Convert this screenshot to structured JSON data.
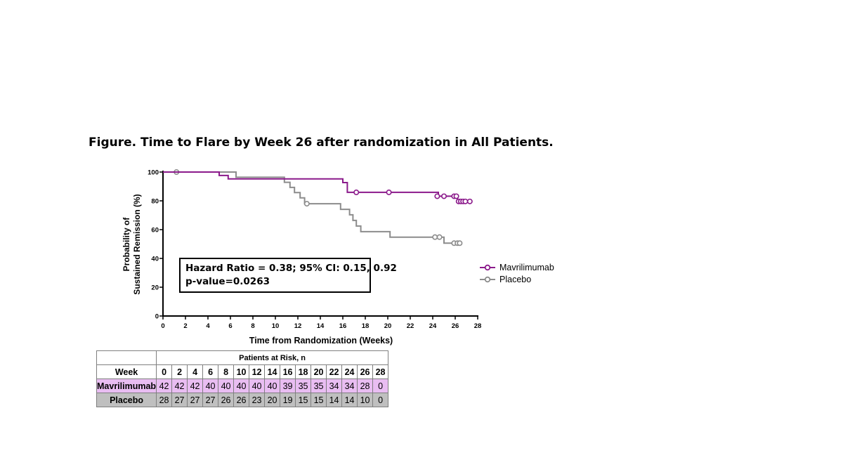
{
  "figure_title": "Figure. Time to Flare by Week 26 after randomization  in All Patients.",
  "annotation": {
    "line1": "Hazard Ratio = 0.38; 95% CI: 0.15, 0.92",
    "line2": "p-value=0.0263"
  },
  "colors": {
    "mavrilimumab": "#8b1a8b",
    "placebo": "#8c8c8c",
    "mav_row_bg": "#e9bdf2",
    "placebo_row_bg": "#bfbfbf"
  },
  "chart_data": {
    "type": "line",
    "title": "",
    "xlabel": "Time from Randomization (Weeks)",
    "ylabel_line1": "Probability of",
    "ylabel_line2": "Sustained Remission (%)",
    "xlim": [
      0,
      28
    ],
    "ylim": [
      0,
      100
    ],
    "x_ticks": [
      0,
      2,
      4,
      6,
      8,
      10,
      12,
      14,
      16,
      18,
      20,
      22,
      24,
      26,
      28
    ],
    "y_ticks": [
      0,
      20,
      40,
      60,
      80,
      100
    ],
    "legend_position": "right",
    "series": [
      {
        "name": "Mavrilimumab",
        "step": [
          [
            0,
            100
          ],
          [
            5,
            100
          ],
          [
            5,
            97.6
          ],
          [
            5.8,
            97.6
          ],
          [
            5.8,
            95.2
          ],
          [
            16,
            95.2
          ],
          [
            16,
            92.7
          ],
          [
            16.4,
            92.7
          ],
          [
            16.4,
            85.9
          ],
          [
            24.5,
            85.9
          ],
          [
            24.5,
            83.2
          ],
          [
            26.2,
            83.2
          ],
          [
            26.2,
            79.6
          ],
          [
            27.2,
            79.6
          ]
        ],
        "censored": [
          [
            17.2,
            85.9
          ],
          [
            20.1,
            85.9
          ],
          [
            24.4,
            83.2
          ],
          [
            25,
            83.2
          ],
          [
            25.9,
            83.2
          ],
          [
            26.1,
            83.2
          ],
          [
            26.3,
            79.6
          ],
          [
            26.5,
            79.6
          ],
          [
            26.7,
            79.6
          ],
          [
            26.9,
            79.6
          ],
          [
            27.3,
            79.6
          ]
        ]
      },
      {
        "name": "Placebo",
        "step": [
          [
            0,
            100
          ],
          [
            6.5,
            100
          ],
          [
            6.5,
            96.4
          ],
          [
            10.8,
            96.4
          ],
          [
            10.8,
            92.9
          ],
          [
            11.3,
            92.9
          ],
          [
            11.3,
            89.3
          ],
          [
            11.7,
            89.3
          ],
          [
            11.7,
            85.7
          ],
          [
            12.2,
            85.7
          ],
          [
            12.2,
            82.1
          ],
          [
            12.6,
            82.1
          ],
          [
            12.6,
            78
          ],
          [
            15.8,
            78
          ],
          [
            15.8,
            74.1
          ],
          [
            16.6,
            74.1
          ],
          [
            16.6,
            70.3
          ],
          [
            16.9,
            70.3
          ],
          [
            16.9,
            66.4
          ],
          [
            17.2,
            66.4
          ],
          [
            17.2,
            62.5
          ],
          [
            17.6,
            62.5
          ],
          [
            17.6,
            58.6
          ],
          [
            20.2,
            58.6
          ],
          [
            20.2,
            54.8
          ],
          [
            25,
            54.8
          ],
          [
            25,
            50.6
          ],
          [
            26.5,
            50.6
          ]
        ],
        "censored": [
          [
            1.2,
            100
          ],
          [
            12.8,
            78
          ],
          [
            24.2,
            54.8
          ],
          [
            24.6,
            54.8
          ],
          [
            25.9,
            50.6
          ],
          [
            26.2,
            50.6
          ],
          [
            26.4,
            50.6
          ]
        ]
      }
    ]
  },
  "risk_table": {
    "header": "Patients at Risk, n",
    "week_label": "Week",
    "weeks": [
      "0",
      "2",
      "4",
      "6",
      "8",
      "10",
      "12",
      "14",
      "16",
      "18",
      "20",
      "22",
      "24",
      "26",
      "28"
    ],
    "rows": [
      {
        "label": "Mavrilimumab",
        "values": [
          "42",
          "42",
          "42",
          "40",
          "40",
          "40",
          "40",
          "40",
          "39",
          "35",
          "35",
          "34",
          "34",
          "28",
          "0"
        ]
      },
      {
        "label": "Placebo",
        "values": [
          "28",
          "27",
          "27",
          "27",
          "26",
          "26",
          "23",
          "20",
          "19",
          "15",
          "15",
          "14",
          "14",
          "10",
          "0"
        ]
      }
    ]
  }
}
